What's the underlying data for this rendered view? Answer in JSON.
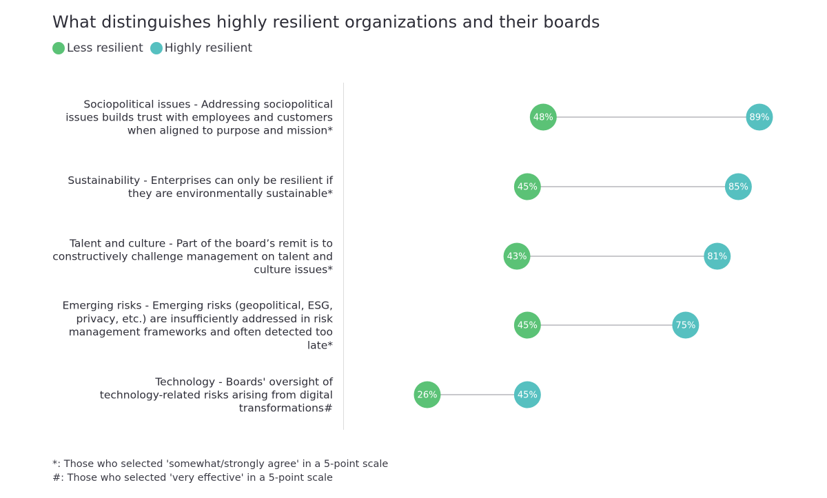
{
  "colors": {
    "less_resilient": "#5bc276",
    "highly_resilient": "#56c0c0",
    "connector": "#c8c8cc",
    "divider": "#dcdcdc"
  },
  "chart_data": {
    "type": "dumbbell",
    "title": "What distinguishes highly resilient organizations and their boards",
    "legend": [
      {
        "name": "Less resilient",
        "color": "#5bc276"
      },
      {
        "name": "Highly resilient",
        "color": "#56c0c0"
      }
    ],
    "legend_position": "top-left",
    "x_range": [
      0,
      100
    ],
    "unit": "%",
    "grid": false,
    "categories": [
      {
        "lines": [
          "Sociopolitical issues - Addressing sociopolitical",
          "issues builds trust with employees and customers",
          "when aligned to purpose and mission*"
        ]
      },
      {
        "lines": [
          "Sustainability - Enterprises can only be resilient if",
          "they are environmentally sustainable*"
        ]
      },
      {
        "lines": [
          "Talent and culture - Part of the board’s remit is to",
          "constructively challenge management on talent and",
          "culture issues*"
        ]
      },
      {
        "lines": [
          "Emerging risks - Emerging risks (geopolitical, ESG,",
          "privacy, etc.) are insufficiently addressed in risk",
          "management frameworks and often detected too",
          "late*"
        ]
      },
      {
        "lines": [
          "Technology - Boards' oversight of",
          "technology-related risks arising from digital",
          "transformations#"
        ]
      }
    ],
    "series": [
      {
        "name": "Less resilient",
        "values": [
          48,
          45,
          43,
          45,
          26
        ]
      },
      {
        "name": "Highly resilient",
        "values": [
          89,
          85,
          81,
          75,
          45
        ]
      }
    ]
  },
  "footnotes": [
    "*: Those who selected 'somewhat/strongly agree' in a 5-point scale",
    "#: Those who selected 'very effective' in a 5-point scale"
  ]
}
